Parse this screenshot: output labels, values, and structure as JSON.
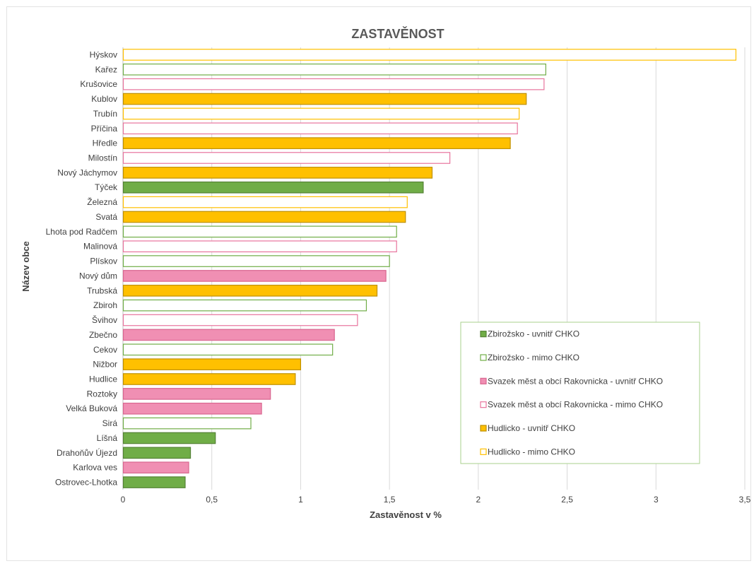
{
  "chart_data": {
    "type": "bar",
    "orientation": "horizontal",
    "title": "ZASTAVĚNOST",
    "xlabel": "Zastavěnost v %",
    "ylabel": "Název obce",
    "xlim": [
      0,
      3.5
    ],
    "xticks": [
      "0",
      "0,5",
      "1",
      "1,5",
      "2",
      "2,5",
      "3",
      "3,5"
    ],
    "grid": "vertical",
    "legend_position": "bottom-right",
    "legend": [
      {
        "key": "zbi_in",
        "label": "Zbirožsko - uvnitř CHKO",
        "fill": "#70ad47",
        "stroke": "#548235",
        "filled": true
      },
      {
        "key": "zbi_out",
        "label": "Zbirožsko - mimo CHKO",
        "fill": "#ffffff",
        "stroke": "#70ad47",
        "filled": false
      },
      {
        "key": "rak_in",
        "label": "Svazek měst a obcí Rakovnicka - uvnitř CHKO",
        "fill": "#f08fb3",
        "stroke": "#d9668f",
        "filled": true
      },
      {
        "key": "rak_out",
        "label": "Svazek měst a obcí Rakovnicka - mimo CHKO",
        "fill": "#ffffff",
        "stroke": "#e8749d",
        "filled": false
      },
      {
        "key": "hud_in",
        "label": "Hudlicko - uvnitř CHKO",
        "fill": "#ffc000",
        "stroke": "#bf9000",
        "filled": true
      },
      {
        "key": "hud_out",
        "label": "Hudlicko - mimo CHKO",
        "fill": "#ffffff",
        "stroke": "#ffc000",
        "filled": false
      }
    ],
    "bars": [
      {
        "name": "Hýskov",
        "value": 3.45,
        "group": "hud_out"
      },
      {
        "name": "Kařez",
        "value": 2.38,
        "group": "zbi_out"
      },
      {
        "name": "Krušovice",
        "value": 2.37,
        "group": "rak_out"
      },
      {
        "name": "Kublov",
        "value": 2.27,
        "group": "hud_in"
      },
      {
        "name": "Trubín",
        "value": 2.23,
        "group": "hud_out"
      },
      {
        "name": "Příčina",
        "value": 2.22,
        "group": "rak_out"
      },
      {
        "name": "Hředle",
        "value": 2.18,
        "group": "hud_in"
      },
      {
        "name": "Milostín",
        "value": 1.84,
        "group": "rak_out"
      },
      {
        "name": "Nový Jáchymov",
        "value": 1.74,
        "group": "hud_in"
      },
      {
        "name": "Týček",
        "value": 1.69,
        "group": "zbi_in"
      },
      {
        "name": "Železná",
        "value": 1.6,
        "group": "hud_out"
      },
      {
        "name": "Svatá",
        "value": 1.59,
        "group": "hud_in"
      },
      {
        "name": "Lhota pod Radčem",
        "value": 1.54,
        "group": "zbi_out"
      },
      {
        "name": "Malinová",
        "value": 1.54,
        "group": "rak_out"
      },
      {
        "name": "Plískov",
        "value": 1.5,
        "group": "zbi_out"
      },
      {
        "name": "Nový dům",
        "value": 1.48,
        "group": "rak_in"
      },
      {
        "name": "Trubská",
        "value": 1.43,
        "group": "hud_in"
      },
      {
        "name": "Zbiroh",
        "value": 1.37,
        "group": "zbi_out"
      },
      {
        "name": "Švihov",
        "value": 1.32,
        "group": "rak_out"
      },
      {
        "name": "Zbečno",
        "value": 1.19,
        "group": "rak_in"
      },
      {
        "name": "Cekov",
        "value": 1.18,
        "group": "zbi_out"
      },
      {
        "name": "Nižbor",
        "value": 1.0,
        "group": "hud_in"
      },
      {
        "name": "Hudlice",
        "value": 0.97,
        "group": "hud_in"
      },
      {
        "name": "Roztoky",
        "value": 0.83,
        "group": "rak_in"
      },
      {
        "name": "Velká Buková",
        "value": 0.78,
        "group": "rak_in"
      },
      {
        "name": "Sirá",
        "value": 0.72,
        "group": "zbi_out"
      },
      {
        "name": "Líšná",
        "value": 0.52,
        "group": "zbi_in"
      },
      {
        "name": "Drahoňův Újezd",
        "value": 0.38,
        "group": "zbi_in"
      },
      {
        "name": "Karlova ves",
        "value": 0.37,
        "group": "rak_in"
      },
      {
        "name": "Ostrovec-Lhotka",
        "value": 0.35,
        "group": "zbi_in"
      }
    ]
  }
}
